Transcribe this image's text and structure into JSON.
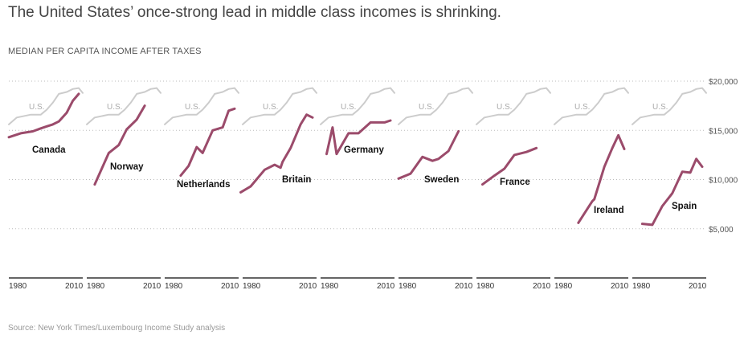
{
  "title": "The United States’ once-strong lead in middle class incomes is shrinking.",
  "subtitle": "MEDIAN PER CAPITA INCOME AFTER TAXES",
  "source": "Source: New York Times/Luxembourg Income Study analysis",
  "chart_data": {
    "type": "line",
    "ylim": [
      0,
      20000
    ],
    "yticks": [
      {
        "value": 5000,
        "label": "$5,000"
      },
      {
        "value": 10000,
        "label": "$10,000"
      },
      {
        "value": 15000,
        "label": "$15,000"
      },
      {
        "value": 20000,
        "label": "$20,000"
      }
    ],
    "xlim": [
      1975,
      2012
    ],
    "xtick_labels": [
      "1980",
      "2010"
    ],
    "grid": true,
    "colors": {
      "country": "#9b4b6b",
      "us": "#cccccc",
      "grid": "#bbbbbb",
      "axis": "#333333"
    },
    "us_series": {
      "name": "U.S.",
      "x": [
        1975,
        1979,
        1986,
        1991,
        1994,
        1997,
        2000,
        2004,
        2007,
        2010,
        2012
      ],
      "values": [
        15600,
        16300,
        16600,
        16600,
        17100,
        17800,
        18700,
        18900,
        19200,
        19300,
        18800
      ]
    },
    "panels": [
      {
        "name": "Canada",
        "x": [
          1975,
          1981,
          1987,
          1991,
          1994,
          1997,
          2000,
          2004,
          2007,
          2010
        ],
        "values": [
          14300,
          14700,
          14900,
          15200,
          15400,
          15600,
          15900,
          16800,
          18000,
          18700
        ]
      },
      {
        "name": "Norway",
        "x": [
          1979,
          1986,
          1991,
          1995,
          2000,
          2004
        ],
        "values": [
          9500,
          12700,
          13500,
          15100,
          16100,
          17500
        ]
      },
      {
        "name": "Netherlands",
        "x": [
          1983,
          1987,
          1991,
          1994,
          1999,
          2004,
          2007,
          2010
        ],
        "values": [
          10400,
          11400,
          13300,
          12700,
          15000,
          15300,
          17000,
          17200
        ]
      },
      {
        "name": "Britain",
        "x": [
          1974,
          1979,
          1986,
          1991,
          1994,
          1995,
          1999,
          2004,
          2007,
          2010
        ],
        "values": [
          8700,
          9300,
          11000,
          11500,
          11200,
          11800,
          13200,
          15600,
          16600,
          16300
        ]
      },
      {
        "name": "Germany",
        "x": [
          1978,
          1981,
          1983,
          1989,
          1994,
          2000,
          2004,
          2007,
          2010
        ],
        "values": [
          12600,
          15300,
          12600,
          14700,
          14700,
          15800,
          15800,
          15800,
          16000
        ]
      },
      {
        "name": "Sweden",
        "x": [
          1975,
          1981,
          1987,
          1992,
          1995,
          2000,
          2005
        ],
        "values": [
          10100,
          10600,
          12300,
          11900,
          12100,
          12900,
          14900
        ]
      },
      {
        "name": "France",
        "x": [
          1978,
          1984,
          1989,
          1994,
          2000,
          2005
        ],
        "values": [
          9500,
          10400,
          11100,
          12500,
          12800,
          13200
        ]
      },
      {
        "name": "Ireland",
        "x": [
          1987,
          1994,
          1995,
          2000,
          2004,
          2007,
          2010
        ],
        "values": [
          5600,
          7800,
          8000,
          11300,
          13200,
          14500,
          13100
        ]
      },
      {
        "name": "Spain",
        "x": [
          1980,
          1985,
          1990,
          1995,
          2000,
          2004,
          2007,
          2010
        ],
        "values": [
          5500,
          5400,
          7300,
          8600,
          10800,
          10700,
          12100,
          11300
        ]
      }
    ]
  }
}
